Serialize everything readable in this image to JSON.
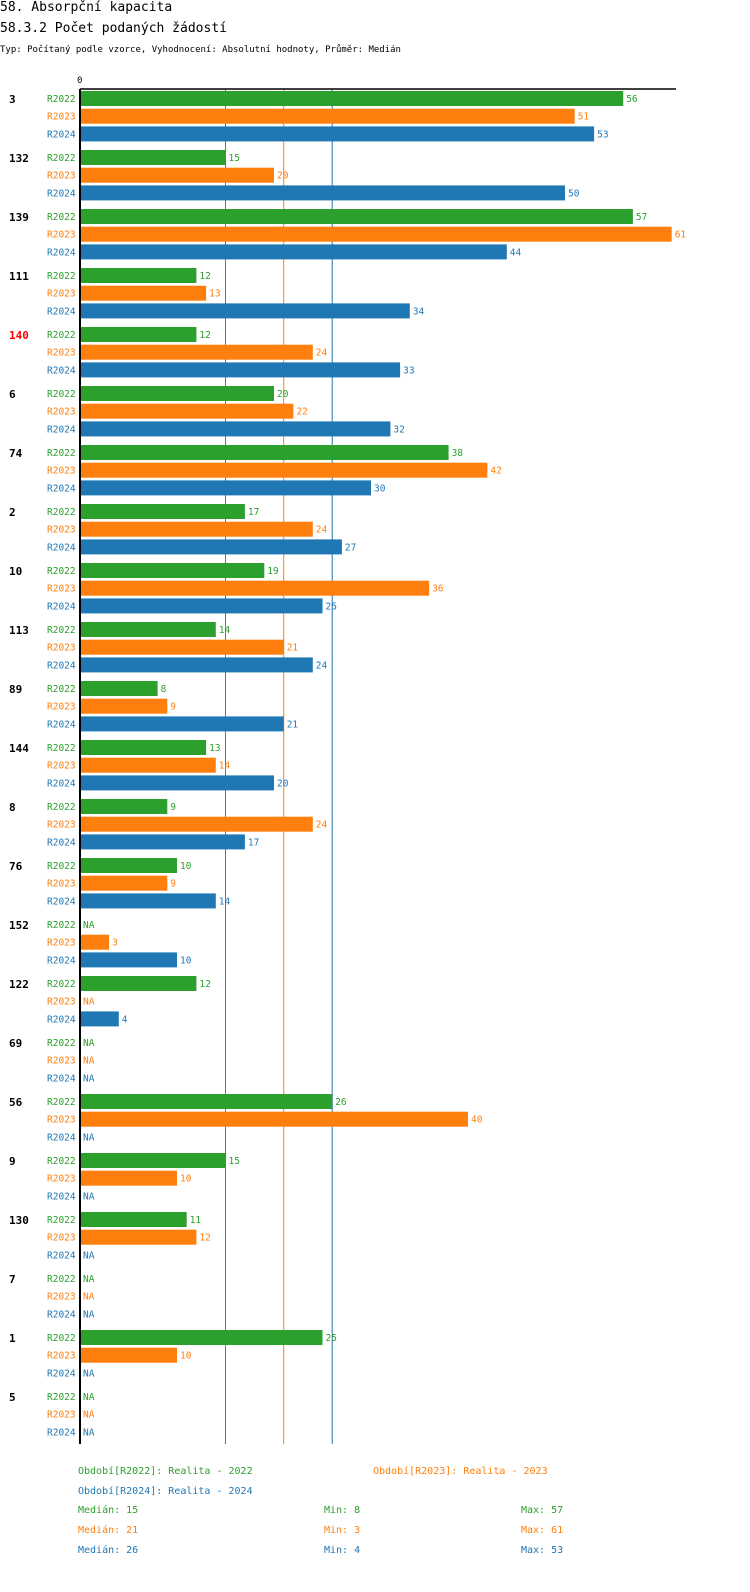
{
  "header": {
    "title": "58. Absorpční kapacita",
    "subtitle": "58.3.2 Počet podaných žádostí",
    "type_line": "Typ: Počítaný podle vzorce, Vyhodnocení: Absolutní hodnoty, Průměr: Medián"
  },
  "colors": {
    "R2022": "#2ca02c",
    "R2023": "#ff7f0e",
    "R2024": "#1f77b4",
    "highlight": "#ff0000"
  },
  "chart_data": {
    "type": "bar",
    "orientation": "horizontal",
    "axis_label_zero": "0",
    "xlim": [
      0,
      61
    ],
    "na_label": "NA",
    "highlighted_category": "140",
    "series_names": [
      "R2022",
      "R2023",
      "R2024"
    ],
    "categories": [
      "3",
      "132",
      "139",
      "111",
      "140",
      "6",
      "74",
      "2",
      "10",
      "113",
      "89",
      "144",
      "8",
      "76",
      "152",
      "122",
      "69",
      "56",
      "9",
      "130",
      "7",
      "1",
      "5"
    ],
    "series": [
      {
        "name": "R2022",
        "values": [
          56,
          15,
          57,
          12,
          12,
          20,
          38,
          17,
          19,
          14,
          8,
          13,
          9,
          10,
          null,
          12,
          null,
          26,
          15,
          11,
          null,
          25,
          null
        ]
      },
      {
        "name": "R2023",
        "values": [
          51,
          20,
          61,
          13,
          24,
          22,
          42,
          24,
          36,
          21,
          9,
          14,
          24,
          9,
          3,
          null,
          null,
          40,
          10,
          12,
          null,
          10,
          null
        ]
      },
      {
        "name": "R2024",
        "values": [
          53,
          50,
          44,
          34,
          33,
          32,
          30,
          27,
          25,
          24,
          21,
          20,
          17,
          14,
          10,
          4,
          null,
          null,
          null,
          null,
          null,
          null,
          null
        ]
      }
    ],
    "median_lines": [
      {
        "name": "R2022",
        "value": 15
      },
      {
        "name": "R2023",
        "value": 21
      },
      {
        "name": "R2024",
        "value": 26
      }
    ]
  },
  "legend": {
    "r2022": "Období[R2022]: Realita - 2022",
    "r2023": "Období[R2023]: Realita - 2023",
    "r2024": "Období[R2024]: Realita - 2024"
  },
  "stats": [
    {
      "median": "Medián: 15",
      "min": "Min: 8",
      "max": "Max: 57"
    },
    {
      "median": "Medián: 21",
      "min": "Min: 3",
      "max": "Max: 61"
    },
    {
      "median": "Medián: 26",
      "min": "Min: 4",
      "max": "Max: 53"
    }
  ]
}
